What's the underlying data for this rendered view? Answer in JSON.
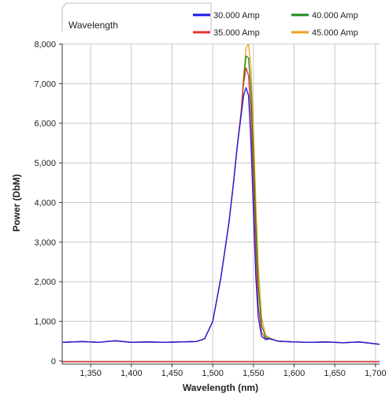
{
  "tab": {
    "label": "Wavelength"
  },
  "chart_data": {
    "type": "line",
    "title": "",
    "xlabel": "Wavelength (nm)",
    "ylabel": "Power (DbM)",
    "xlim": [
      1315,
      1705
    ],
    "ylim": [
      -80,
      8000
    ],
    "xticks": [
      1350,
      1400,
      1450,
      1500,
      1550,
      1600,
      1650,
      1700
    ],
    "xtick_labels": [
      "1,350",
      "1,400",
      "1,450",
      "1,500",
      "1,550",
      "1,600",
      "1,650",
      "1,700"
    ],
    "yticks": [
      0,
      1000,
      2000,
      3000,
      4000,
      5000,
      6000,
      7000,
      8000
    ],
    "ytick_labels": [
      "0",
      "1,000",
      "2,000",
      "3,000",
      "4,000",
      "5,000",
      "6,000",
      "7,000",
      "8,000"
    ],
    "grid": true,
    "legend_position": "top-right",
    "reference_line": {
      "y": -20,
      "color": "#e03030"
    },
    "series": [
      {
        "name": "30.000 Amp",
        "color": "#1a1ae6",
        "x": [
          1315,
          1340,
          1360,
          1380,
          1400,
          1420,
          1440,
          1460,
          1480,
          1490,
          1500,
          1510,
          1520,
          1525,
          1530,
          1535,
          1538,
          1541,
          1544,
          1547,
          1550,
          1553,
          1556,
          1560,
          1565,
          1570,
          1580,
          1600,
          1620,
          1640,
          1660,
          1680,
          1705
        ],
        "y": [
          470,
          490,
          470,
          510,
          470,
          480,
          470,
          480,
          490,
          560,
          1000,
          2100,
          3500,
          4400,
          5400,
          6200,
          6700,
          6900,
          6700,
          5500,
          3800,
          2100,
          1100,
          620,
          540,
          560,
          500,
          480,
          470,
          480,
          460,
          480,
          420
        ]
      },
      {
        "name": "35.000 Amp",
        "color": "#e63333",
        "x": [
          1315,
          1340,
          1360,
          1380,
          1400,
          1420,
          1440,
          1460,
          1480,
          1490,
          1500,
          1510,
          1520,
          1525,
          1530,
          1535,
          1538,
          1541,
          1544,
          1547,
          1550,
          1553,
          1556,
          1560,
          1565,
          1570,
          1580,
          1600,
          1620,
          1640,
          1660,
          1680,
          1705
        ],
        "y": [
          470,
          490,
          470,
          510,
          470,
          480,
          470,
          480,
          490,
          560,
          1000,
          2100,
          3500,
          4400,
          5400,
          6300,
          7000,
          7400,
          7200,
          6200,
          4500,
          2700,
          1400,
          720,
          560,
          560,
          500,
          480,
          470,
          480,
          460,
          480,
          420
        ]
      },
      {
        "name": "40.000 Amp",
        "color": "#1a8c1a",
        "x": [
          1315,
          1340,
          1360,
          1380,
          1400,
          1420,
          1440,
          1460,
          1480,
          1490,
          1500,
          1510,
          1520,
          1525,
          1530,
          1535,
          1538,
          1541,
          1544,
          1547,
          1550,
          1553,
          1556,
          1560,
          1565,
          1570,
          1580,
          1600,
          1620,
          1640,
          1660,
          1680,
          1705
        ],
        "y": [
          470,
          490,
          470,
          510,
          470,
          480,
          470,
          480,
          490,
          560,
          1000,
          2100,
          3500,
          4400,
          5400,
          6300,
          7100,
          7700,
          7650,
          6800,
          5200,
          3400,
          1900,
          900,
          600,
          570,
          500,
          480,
          470,
          480,
          460,
          480,
          420
        ]
      },
      {
        "name": "45.000 Amp",
        "color": "#f0a020",
        "x": [
          1315,
          1340,
          1360,
          1380,
          1400,
          1420,
          1440,
          1460,
          1480,
          1490,
          1500,
          1510,
          1520,
          1525,
          1530,
          1535,
          1538,
          1541,
          1544,
          1547,
          1550,
          1553,
          1556,
          1560,
          1565,
          1570,
          1580,
          1600,
          1620,
          1640,
          1660,
          1680,
          1705
        ],
        "y": [
          470,
          490,
          470,
          510,
          470,
          480,
          470,
          480,
          490,
          560,
          1000,
          2100,
          3500,
          4400,
          5400,
          6300,
          7200,
          7900,
          8000,
          7400,
          5900,
          4000,
          2400,
          1100,
          650,
          580,
          500,
          480,
          470,
          480,
          460,
          480,
          420
        ]
      }
    ]
  }
}
